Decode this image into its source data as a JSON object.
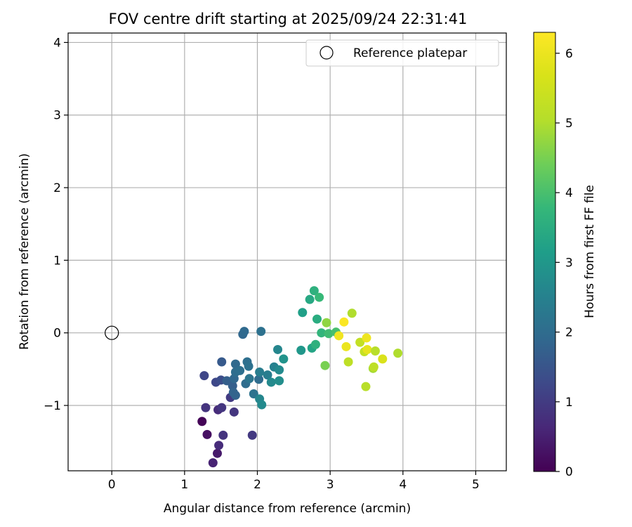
{
  "chart_data": {
    "type": "scatter",
    "title": "FOV centre drift starting at 2025/09/24 22:31:41",
    "xlabel": "Angular distance from reference (arcmin)",
    "ylabel": "Rotation from reference (arcmin)",
    "xlim": [
      -0.6,
      5.42
    ],
    "ylim": [
      -1.9,
      4.13
    ],
    "xticks": [
      0,
      1,
      2,
      3,
      4,
      5
    ],
    "yticks": [
      -1,
      0,
      1,
      2,
      3,
      4
    ],
    "xtick_labels": [
      "0",
      "1",
      "2",
      "3",
      "4",
      "5"
    ],
    "ytick_labels": [
      "−1",
      "0",
      "1",
      "2",
      "3",
      "4"
    ],
    "grid": true,
    "legend": {
      "position": "top-right",
      "label": "Reference platepar"
    },
    "reference_point": {
      "x": 0,
      "y": 0
    },
    "colorbar": {
      "label": "Hours from first FF file",
      "range": [
        0,
        6.3
      ],
      "ticks": [
        0,
        1,
        2,
        3,
        4,
        5,
        6
      ],
      "tick_labels": [
        "0",
        "1",
        "2",
        "3",
        "4",
        "5",
        "6"
      ],
      "colormap": "viridis"
    },
    "series": [
      {
        "name": "FOV centre",
        "points": [
          {
            "x": 1.24,
            "y": -1.22,
            "h": 0.05
          },
          {
            "x": 1.31,
            "y": -1.4,
            "h": 0.25
          },
          {
            "x": 1.45,
            "y": -1.66,
            "h": 0.4
          },
          {
            "x": 1.39,
            "y": -1.79,
            "h": 0.55
          },
          {
            "x": 1.47,
            "y": -1.55,
            "h": 0.7
          },
          {
            "x": 1.46,
            "y": -1.06,
            "h": 0.7
          },
          {
            "x": 1.29,
            "y": -1.03,
            "h": 0.85
          },
          {
            "x": 1.51,
            "y": -1.03,
            "h": 0.9
          },
          {
            "x": 1.53,
            "y": -1.41,
            "h": 0.85
          },
          {
            "x": 1.68,
            "y": -1.09,
            "h": 0.9
          },
          {
            "x": 1.93,
            "y": -1.41,
            "h": 0.95
          },
          {
            "x": 1.63,
            "y": -0.89,
            "h": 1.0
          },
          {
            "x": 1.27,
            "y": -0.59,
            "h": 1.2
          },
          {
            "x": 1.43,
            "y": -0.68,
            "h": 1.25
          },
          {
            "x": 1.5,
            "y": -0.65,
            "h": 1.35
          },
          {
            "x": 1.51,
            "y": -0.4,
            "h": 1.6
          },
          {
            "x": 1.58,
            "y": -0.66,
            "h": 1.7
          },
          {
            "x": 1.66,
            "y": -0.73,
            "h": 1.7
          },
          {
            "x": 1.67,
            "y": -0.82,
            "h": 1.8
          },
          {
            "x": 1.7,
            "y": -0.86,
            "h": 1.8
          },
          {
            "x": 1.68,
            "y": -0.63,
            "h": 1.9
          },
          {
            "x": 1.7,
            "y": -0.43,
            "h": 1.95
          },
          {
            "x": 1.7,
            "y": -0.54,
            "h": 2.0
          },
          {
            "x": 1.76,
            "y": -0.52,
            "h": 2.05
          },
          {
            "x": 1.8,
            "y": -0.02,
            "h": 1.9
          },
          {
            "x": 1.82,
            "y": 0.02,
            "h": 1.95
          },
          {
            "x": 1.84,
            "y": -0.7,
            "h": 2.0
          },
          {
            "x": 1.86,
            "y": -0.4,
            "h": 2.05
          },
          {
            "x": 1.88,
            "y": -0.46,
            "h": 2.1
          },
          {
            "x": 1.89,
            "y": -0.63,
            "h": 2.2
          },
          {
            "x": 1.95,
            "y": -0.84,
            "h": 2.15
          },
          {
            "x": 2.02,
            "y": -0.64,
            "h": 2.0
          },
          {
            "x": 2.05,
            "y": 0.02,
            "h": 2.1
          },
          {
            "x": 2.03,
            "y": -0.54,
            "h": 2.4
          },
          {
            "x": 2.03,
            "y": -0.91,
            "h": 2.6
          },
          {
            "x": 2.06,
            "y": -0.99,
            "h": 2.7
          },
          {
            "x": 2.14,
            "y": -0.58,
            "h": 2.4
          },
          {
            "x": 2.19,
            "y": -0.68,
            "h": 2.7
          },
          {
            "x": 2.23,
            "y": -0.47,
            "h": 2.5
          },
          {
            "x": 2.28,
            "y": -0.23,
            "h": 2.6
          },
          {
            "x": 2.3,
            "y": -0.51,
            "h": 2.7
          },
          {
            "x": 2.3,
            "y": -0.66,
            "h": 2.8
          },
          {
            "x": 2.36,
            "y": -0.36,
            "h": 2.9
          },
          {
            "x": 2.6,
            "y": -0.24,
            "h": 3.0
          },
          {
            "x": 2.62,
            "y": 0.28,
            "h": 3.2
          },
          {
            "x": 2.72,
            "y": 0.46,
            "h": 3.4
          },
          {
            "x": 2.75,
            "y": -0.21,
            "h": 3.3
          },
          {
            "x": 2.78,
            "y": 0.58,
            "h": 3.6
          },
          {
            "x": 2.8,
            "y": -0.16,
            "h": 3.6
          },
          {
            "x": 2.82,
            "y": 0.19,
            "h": 3.5
          },
          {
            "x": 2.85,
            "y": 0.49,
            "h": 3.8
          },
          {
            "x": 2.88,
            "y": 0.0,
            "h": 3.7
          },
          {
            "x": 2.93,
            "y": -0.45,
            "h": 4.5
          },
          {
            "x": 2.95,
            "y": 0.14,
            "h": 4.7
          },
          {
            "x": 2.98,
            "y": -0.01,
            "h": 3.9
          },
          {
            "x": 3.08,
            "y": 0.01,
            "h": 4.0
          },
          {
            "x": 3.12,
            "y": -0.04,
            "h": 6.1
          },
          {
            "x": 3.19,
            "y": 0.15,
            "h": 6.25
          },
          {
            "x": 3.22,
            "y": -0.19,
            "h": 6.0
          },
          {
            "x": 3.25,
            "y": -0.4,
            "h": 5.2
          },
          {
            "x": 3.3,
            "y": 0.27,
            "h": 5.0
          },
          {
            "x": 3.41,
            "y": -0.13,
            "h": 5.3
          },
          {
            "x": 3.47,
            "y": -0.26,
            "h": 5.3
          },
          {
            "x": 3.5,
            "y": -0.07,
            "h": 6.05
          },
          {
            "x": 3.51,
            "y": -0.23,
            "h": 5.9
          },
          {
            "x": 3.49,
            "y": -0.74,
            "h": 5.1
          },
          {
            "x": 3.59,
            "y": -0.49,
            "h": 4.9
          },
          {
            "x": 3.6,
            "y": -0.47,
            "h": 5.2
          },
          {
            "x": 3.62,
            "y": -0.25,
            "h": 5.1
          },
          {
            "x": 3.72,
            "y": -0.36,
            "h": 5.7
          },
          {
            "x": 3.93,
            "y": -0.28,
            "h": 5.0
          }
        ]
      }
    ]
  }
}
